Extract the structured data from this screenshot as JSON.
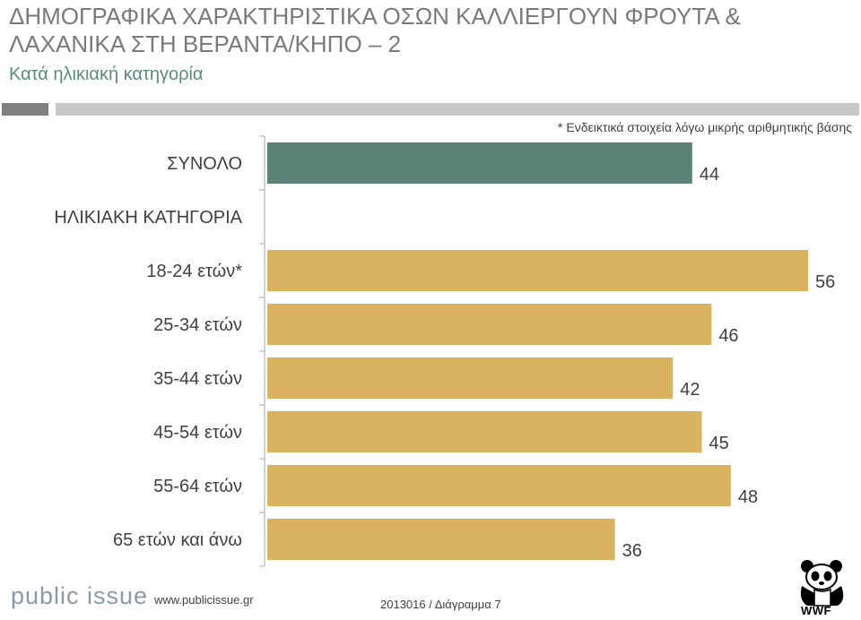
{
  "header": {
    "title_line1": "ΔΗΜΟΓΡΑΦΙΚΑ ΧΑΡΑΚΤΗΡΙΣΤΙΚΑ ΟΣΩΝ ΚΑΛΛΙΕΡΓΟΥΝ ΦΡΟΥΤΑ &",
    "title_line2": "ΛΑΧΑΝΙΚΑ ΣΤΗ ΒΕΡΑΝΤΑ/ΚΗΠΟ – 2",
    "subtitle": "Κατά ηλικιακή κατηγορία",
    "note": "* Ενδεικτικά στοιχεία λόγω μικρής αριθμητικής βάσης"
  },
  "colors": {
    "total_bar": "#5a8276",
    "age_bar": "#d9b35f",
    "header_dark": "#7f7f7f",
    "header_light": "#c8c8c8"
  },
  "chart_data": {
    "type": "bar",
    "orientation": "horizontal",
    "xlim": [
      0,
      56
    ],
    "categories": [
      "ΣΥΝΟΛΟ",
      "ΗΛΙΚΙΑΚΗ ΚΑΤΗΓΟΡΙΑ",
      "18-24 ετών*",
      "25-34 ετών",
      "35-44 ετών",
      "45-54 ετών",
      "55-64 ετών",
      "65 ετών και άνω"
    ],
    "values": [
      44,
      null,
      56,
      46,
      42,
      45,
      48,
      36
    ],
    "value_labels": [
      "44",
      "",
      "56",
      "46",
      "42",
      "45",
      "48",
      "36"
    ],
    "bar_groups": [
      "total",
      "header",
      "age",
      "age",
      "age",
      "age",
      "age",
      "age"
    ],
    "grid": false,
    "legend": "none"
  },
  "footer": {
    "logo": "public issue",
    "url": "www.publicissue.gr",
    "code": "2013016 / Διάγραμμα 7",
    "brand": "WWF"
  }
}
